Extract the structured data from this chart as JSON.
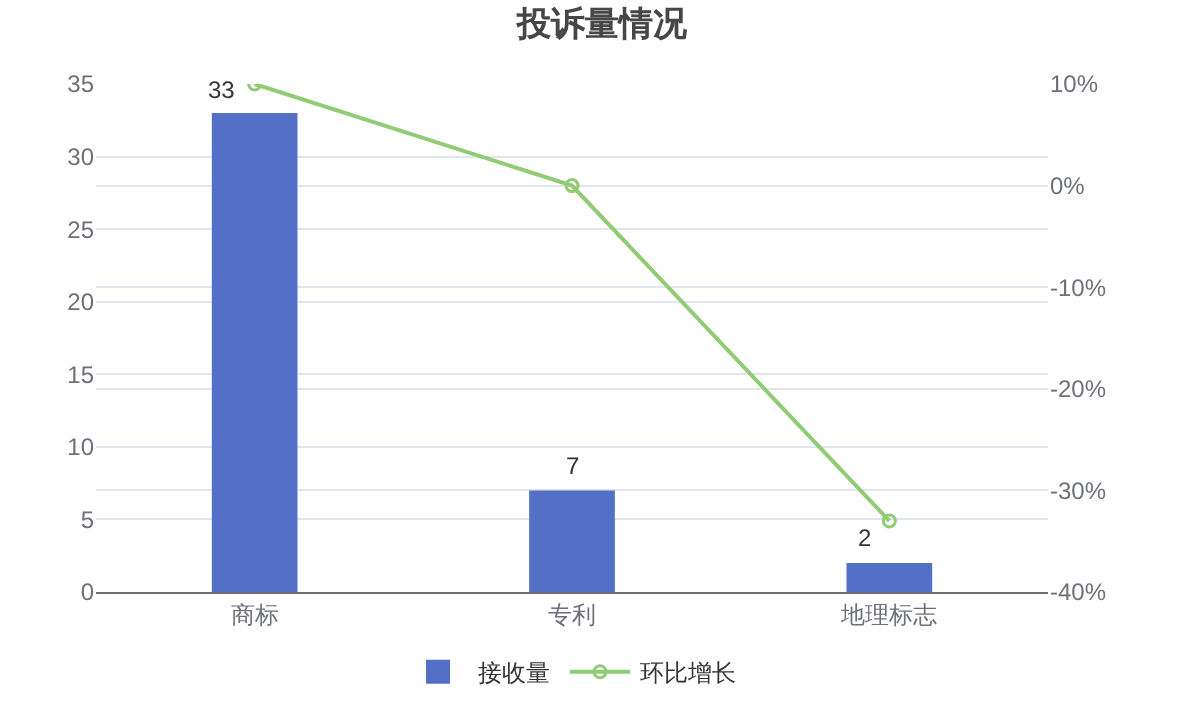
{
  "chart_data": {
    "type": "bar",
    "title": "投诉量情况",
    "categories": [
      "商标",
      "专利",
      "地理标志"
    ],
    "series": [
      {
        "name": "接收量",
        "type": "bar",
        "color": "#5470c6",
        "values": [
          33,
          7,
          2
        ],
        "value_labels": [
          "33",
          "7",
          "2"
        ]
      },
      {
        "name": "环比增长",
        "type": "line",
        "axis": "y2",
        "color": "#91cc75",
        "values": [
          10,
          0,
          -33
        ],
        "marker": "circle"
      }
    ],
    "ylim": [
      0,
      35
    ],
    "yticks": [
      0,
      5,
      10,
      15,
      20,
      25,
      30,
      35
    ],
    "y2lim": [
      -40,
      10
    ],
    "y2ticks": [
      {
        "value": -40,
        "label": "-40%"
      },
      {
        "value": -30,
        "label": "-30%"
      },
      {
        "value": -20,
        "label": "-20%"
      },
      {
        "value": -10,
        "label": "-10%"
      },
      {
        "value": 0,
        "label": "0%"
      },
      {
        "value": 10,
        "label": "10%"
      }
    ],
    "grid": true,
    "legend": "bottom"
  }
}
